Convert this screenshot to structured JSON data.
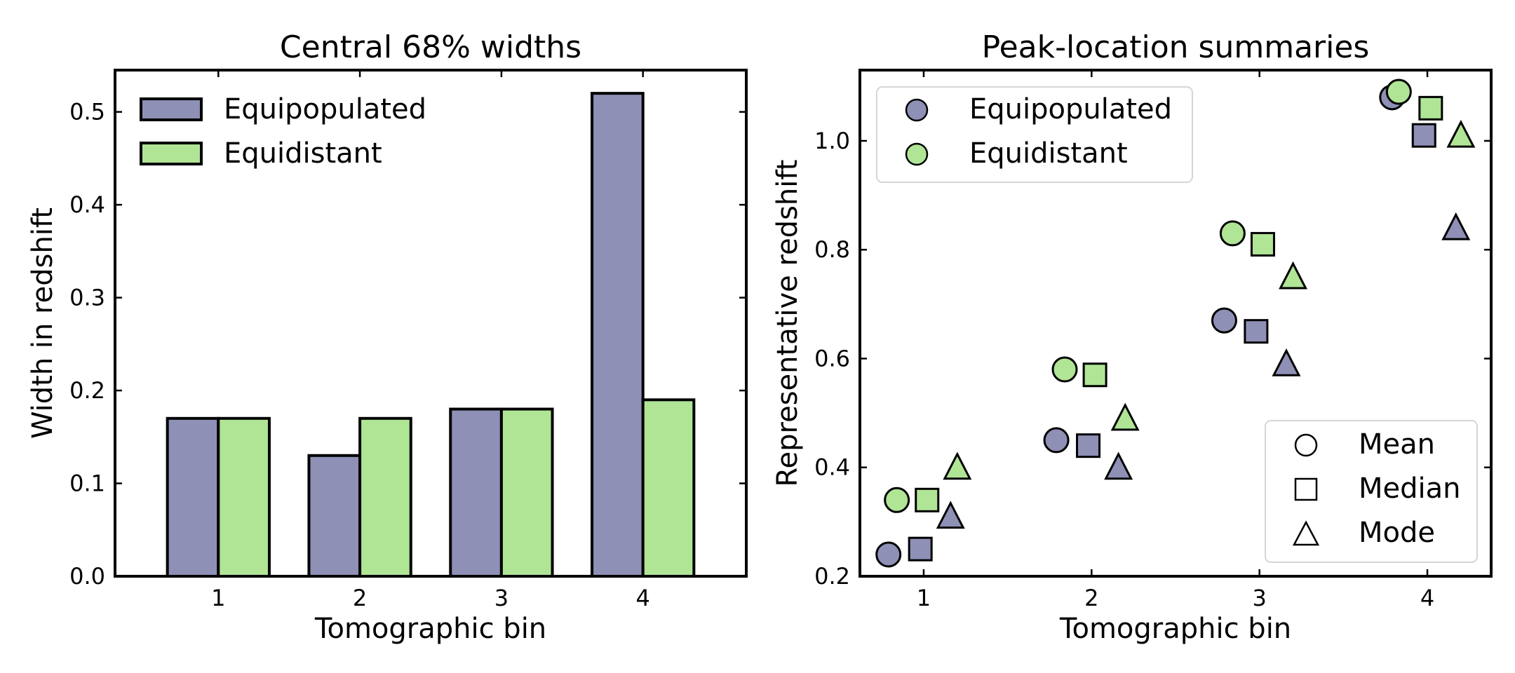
{
  "chart_data": [
    {
      "type": "bar",
      "title": "Central 68% widths",
      "xlabel": "Tomographic bin",
      "ylabel": "Width in redshift",
      "categories": [
        "1",
        "2",
        "3",
        "4"
      ],
      "ylim": [
        0,
        0.545
      ],
      "yticks": [
        "0.0",
        "0.1",
        "0.2",
        "0.3",
        "0.4",
        "0.5"
      ],
      "series": [
        {
          "name": "Equipopulated",
          "color": "#8e90b6",
          "values": [
            0.17,
            0.13,
            0.18,
            0.52
          ]
        },
        {
          "name": "Equidistant",
          "color": "#b0e595",
          "values": [
            0.17,
            0.17,
            0.18,
            0.19
          ]
        }
      ],
      "legend_position": "upper-left"
    },
    {
      "type": "scatter",
      "title": "Peak-location summaries",
      "xlabel": "Tomographic bin",
      "ylabel": "Representative redshift",
      "xticks": [
        "1",
        "2",
        "3",
        "4"
      ],
      "xlim": [
        0.62,
        4.38
      ],
      "ylim": [
        0.2,
        1.13
      ],
      "yticks": [
        "0.2",
        "0.4",
        "0.6",
        "0.8",
        "1.0"
      ],
      "series": [
        {
          "name": "Equipopulated",
          "color": "#8e90b6",
          "points": [
            {
              "marker": "circle",
              "x": 0.79,
              "y": 0.24
            },
            {
              "marker": "square",
              "x": 0.98,
              "y": 0.25
            },
            {
              "marker": "triangle",
              "x": 1.16,
              "y": 0.31
            },
            {
              "marker": "circle",
              "x": 1.79,
              "y": 0.45
            },
            {
              "marker": "square",
              "x": 1.98,
              "y": 0.44
            },
            {
              "marker": "triangle",
              "x": 2.16,
              "y": 0.4
            },
            {
              "marker": "circle",
              "x": 2.79,
              "y": 0.67
            },
            {
              "marker": "square",
              "x": 2.98,
              "y": 0.65
            },
            {
              "marker": "triangle",
              "x": 3.16,
              "y": 0.59
            },
            {
              "marker": "circle",
              "x": 3.79,
              "y": 1.08
            },
            {
              "marker": "square",
              "x": 3.98,
              "y": 1.01
            },
            {
              "marker": "triangle",
              "x": 4.17,
              "y": 0.84
            }
          ]
        },
        {
          "name": "Equidistant",
          "color": "#b0e595",
          "points": [
            {
              "marker": "circle",
              "x": 0.84,
              "y": 0.34
            },
            {
              "marker": "square",
              "x": 1.02,
              "y": 0.34
            },
            {
              "marker": "triangle",
              "x": 1.2,
              "y": 0.4
            },
            {
              "marker": "circle",
              "x": 1.84,
              "y": 0.58
            },
            {
              "marker": "square",
              "x": 2.02,
              "y": 0.57
            },
            {
              "marker": "triangle",
              "x": 2.2,
              "y": 0.49
            },
            {
              "marker": "circle",
              "x": 2.84,
              "y": 0.83
            },
            {
              "marker": "square",
              "x": 3.02,
              "y": 0.81
            },
            {
              "marker": "triangle",
              "x": 3.2,
              "y": 0.75
            },
            {
              "marker": "circle",
              "x": 3.83,
              "y": 1.09
            },
            {
              "marker": "square",
              "x": 4.02,
              "y": 1.06
            },
            {
              "marker": "triangle",
              "x": 4.2,
              "y": 1.01
            }
          ]
        }
      ],
      "legend_position": "upper-left",
      "marker_legend": {
        "position": "lower-right",
        "items": [
          {
            "marker": "circle",
            "label": "Mean"
          },
          {
            "marker": "square",
            "label": "Median"
          },
          {
            "marker": "triangle",
            "label": "Mode"
          }
        ]
      }
    }
  ]
}
